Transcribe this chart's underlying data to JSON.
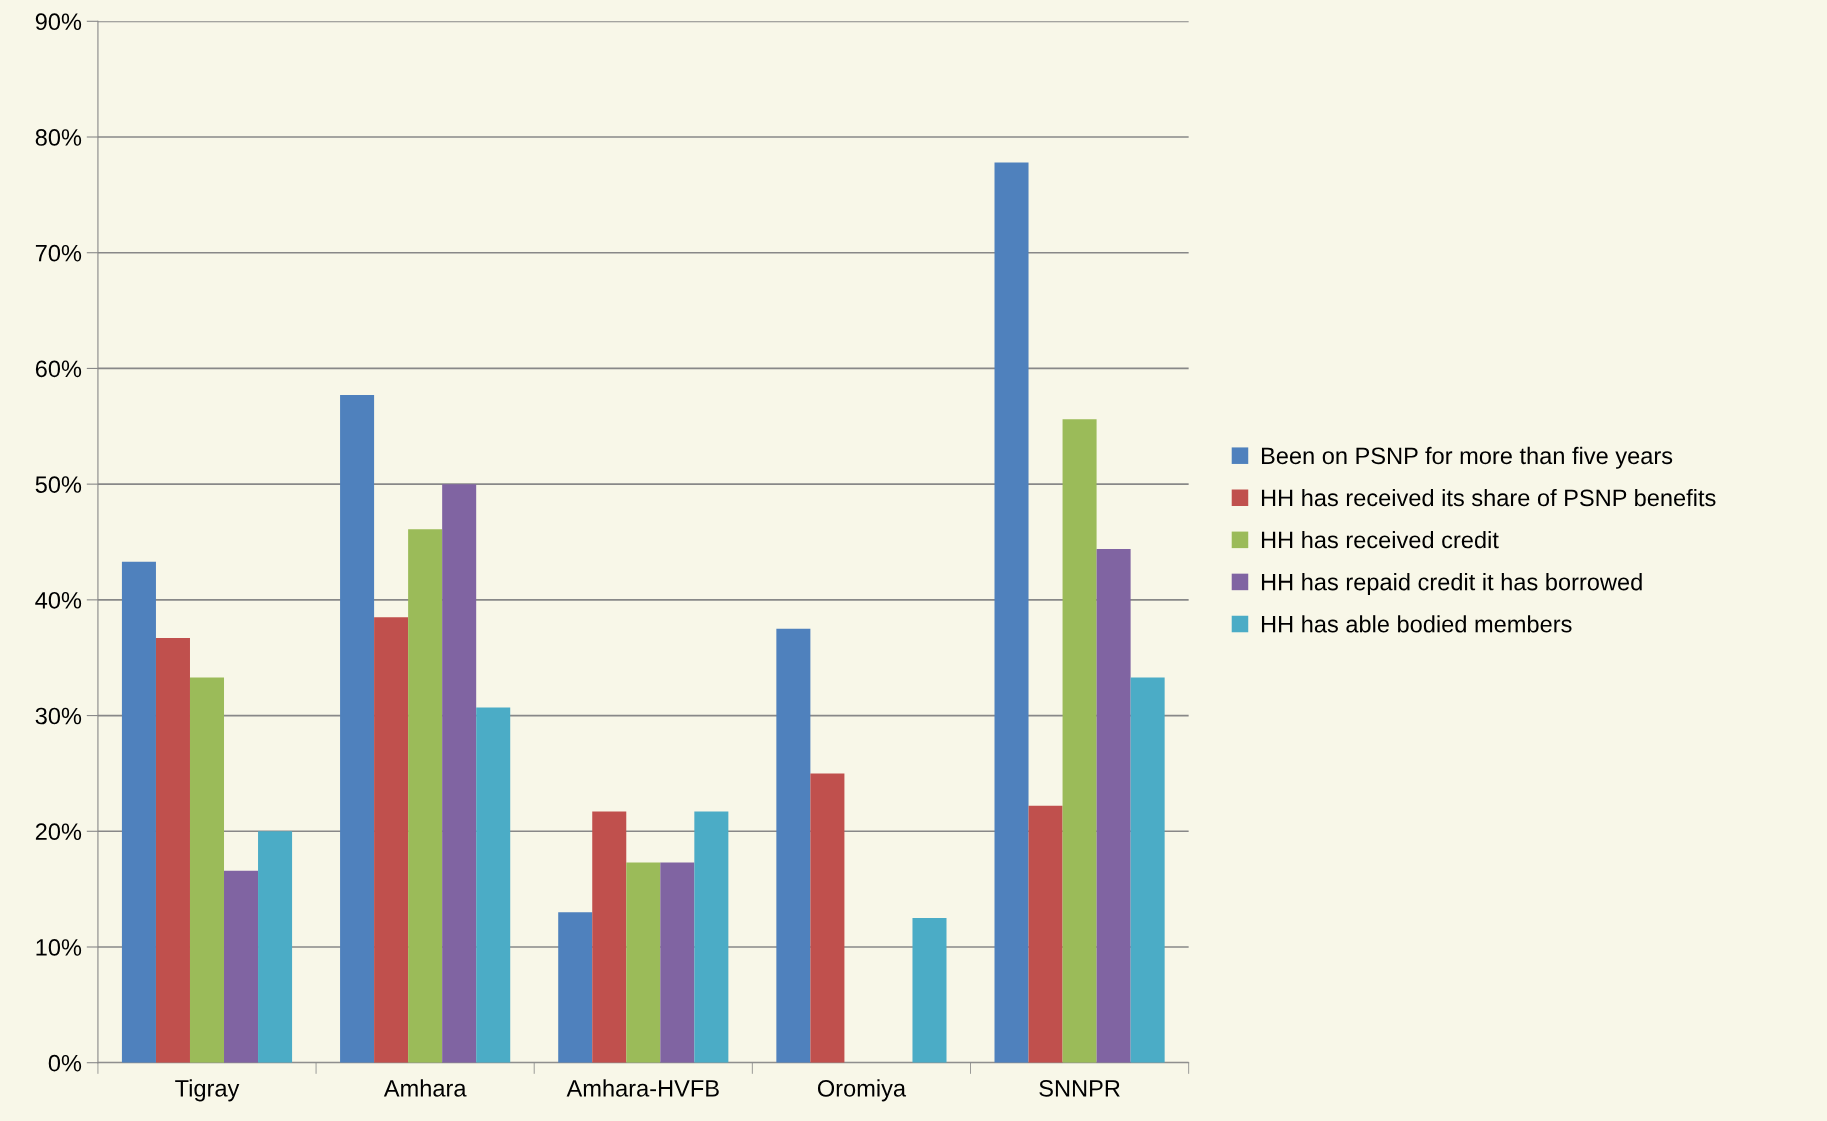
{
  "chart_data": {
    "type": "bar",
    "categories": [
      "Tigray",
      "Amhara",
      "Amhara-HVFB",
      "Oromiya",
      "SNNPR"
    ],
    "series": [
      {
        "name": "Been on PSNP for more than five years",
        "color": "#4f81bd",
        "values": [
          43.3,
          57.7,
          13.0,
          37.5,
          77.8
        ]
      },
      {
        "name": "HH has received its share of PSNP benefits",
        "color": "#c0504d",
        "values": [
          36.7,
          38.5,
          21.7,
          25.0,
          22.2
        ]
      },
      {
        "name": "HH has received credit",
        "color": "#9bbb59",
        "values": [
          33.3,
          46.1,
          17.3,
          0,
          55.6
        ]
      },
      {
        "name": "HH has repaid credit it has borrowed",
        "color": "#8064a2",
        "values": [
          16.6,
          50.0,
          17.3,
          0,
          44.4
        ]
      },
      {
        "name": "HH has able bodied members",
        "color": "#4bacc6",
        "values": [
          20.0,
          30.7,
          21.7,
          12.5,
          33.3
        ]
      }
    ],
    "ylim": [
      0,
      90
    ],
    "yticks": [
      {
        "value": 0,
        "label": "0%"
      },
      {
        "value": 10,
        "label": "10%"
      },
      {
        "value": 20,
        "label": "20%"
      },
      {
        "value": 30,
        "label": "30%"
      },
      {
        "value": 40,
        "label": "40%"
      },
      {
        "value": 50,
        "label": "50%"
      },
      {
        "value": 60,
        "label": "60%"
      },
      {
        "value": 70,
        "label": "70%"
      },
      {
        "value": 80,
        "label": "80%"
      },
      {
        "value": 90,
        "label": "90%"
      }
    ],
    "grid": "y",
    "legend": "right"
  }
}
